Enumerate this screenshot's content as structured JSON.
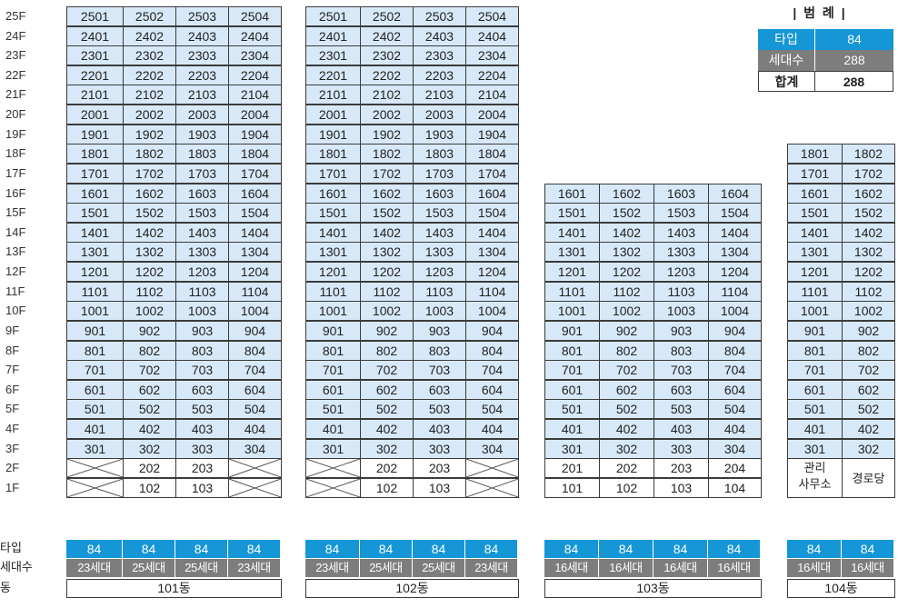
{
  "floors": [
    "25F",
    "24F",
    "23F",
    "22F",
    "21F",
    "20F",
    "19F",
    "18F",
    "17F",
    "16F",
    "15F",
    "14F",
    "13F",
    "12F",
    "11F",
    "10F",
    "9F",
    "8F",
    "7F",
    "6F",
    "5F",
    "4F",
    "3F",
    "2F",
    "1F"
  ],
  "row_labels": {
    "type": "타입",
    "households": "세대수",
    "building": "동"
  },
  "legend": {
    "title": "| 범 례 |",
    "rows": [
      {
        "label": "타입",
        "value": "84",
        "style": "blue"
      },
      {
        "label": "세대수",
        "value": "288",
        "style": "gray"
      },
      {
        "label": "합계",
        "value": "288",
        "style": "white"
      }
    ]
  },
  "colors": {
    "unit_fill": "#d7e9f8",
    "type_fill": "#1596d6",
    "households_fill": "#7d7d7d",
    "border": "#3b3b3b"
  },
  "buildings": [
    {
      "name": "101동",
      "top_floor": 25,
      "lines": [
        1,
        2,
        3,
        4
      ],
      "floor2": [
        "x",
        "202",
        "203",
        "x"
      ],
      "floor1": [
        "x",
        "102",
        "103",
        "x"
      ],
      "types": [
        "84",
        "84",
        "84",
        "84"
      ],
      "households": [
        "23세대",
        "25세대",
        "25세대",
        "23세대"
      ]
    },
    {
      "name": "102동",
      "top_floor": 25,
      "lines": [
        1,
        2,
        3,
        4
      ],
      "floor2": [
        "x",
        "202",
        "203",
        "x"
      ],
      "floor1": [
        "x",
        "102",
        "103",
        "x"
      ],
      "types": [
        "84",
        "84",
        "84",
        "84"
      ],
      "households": [
        "23세대",
        "25세대",
        "25세대",
        "23세대"
      ]
    },
    {
      "name": "103동",
      "top_floor": 16,
      "lines": [
        1,
        2,
        3,
        4
      ],
      "floor2": [
        "201",
        "202",
        "203",
        "204"
      ],
      "floor1": [
        "101",
        "102",
        "103",
        "104"
      ],
      "types": [
        "84",
        "84",
        "84",
        "84"
      ],
      "households": [
        "16세대",
        "16세대",
        "16세대",
        "16세대"
      ]
    },
    {
      "name": "104동",
      "top_floor": 18,
      "lines": [
        1,
        2
      ],
      "floor2": [
        "관리\n사무소",
        "경로당"
      ],
      "floor1": null,
      "types": [
        "84",
        "84"
      ],
      "households": [
        "16세대",
        "16세대"
      ]
    }
  ]
}
